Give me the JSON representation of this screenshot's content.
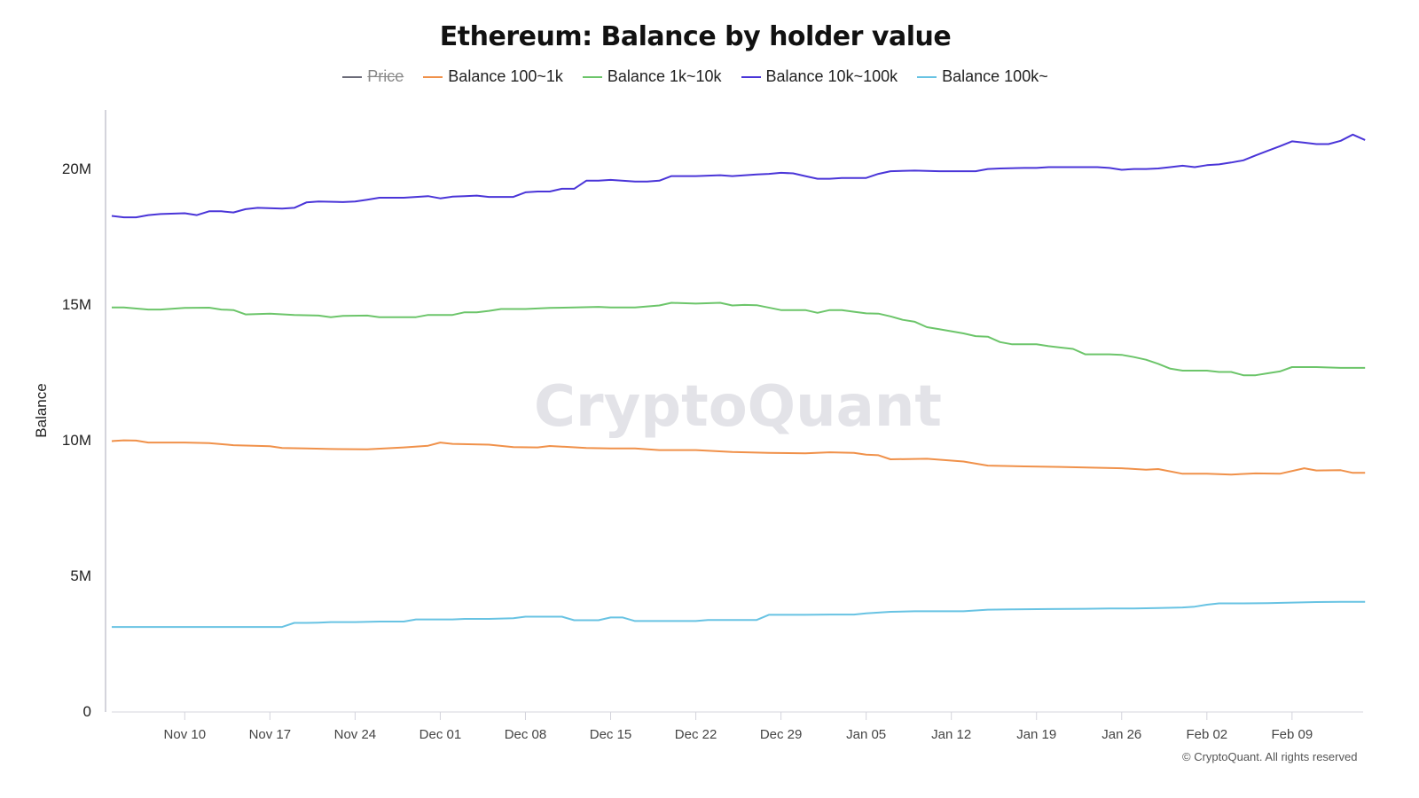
{
  "chart_data": {
    "type": "line",
    "title": "Ethereum: Balance by holder value",
    "xlabel": "",
    "ylabel": "Balance",
    "ylim": [
      0,
      22000000
    ],
    "yticks": [
      {
        "value": 0,
        "label": "0"
      },
      {
        "value": 5000000,
        "label": "5M"
      },
      {
        "value": 10000000,
        "label": "10M"
      },
      {
        "value": 15000000,
        "label": "15M"
      },
      {
        "value": 20000000,
        "label": "20M"
      }
    ],
    "x_start": "Nov 04",
    "x_unit": "day",
    "xticks": [
      {
        "day": 6,
        "label": "Nov 10"
      },
      {
        "day": 13,
        "label": "Nov 17"
      },
      {
        "day": 20,
        "label": "Nov 24"
      },
      {
        "day": 27,
        "label": "Dec 01"
      },
      {
        "day": 34,
        "label": "Dec 08"
      },
      {
        "day": 41,
        "label": "Dec 15"
      },
      {
        "day": 48,
        "label": "Dec 22"
      },
      {
        "day": 55,
        "label": "Dec 29"
      },
      {
        "day": 62,
        "label": "Jan 05"
      },
      {
        "day": 69,
        "label": "Jan 12"
      },
      {
        "day": 76,
        "label": "Jan 19"
      },
      {
        "day": 83,
        "label": "Jan 26"
      },
      {
        "day": 90,
        "label": "Feb 02"
      },
      {
        "day": 97,
        "label": "Feb 09"
      }
    ],
    "grid": false,
    "legend_position": "top-center",
    "series": [
      {
        "name": "Price",
        "color": "#6b6b78",
        "hidden": true,
        "values": []
      },
      {
        "name": "Balance 100~1k",
        "color": "#f0914a",
        "key_points": [
          [
            0,
            9.95
          ],
          [
            1,
            9.98
          ],
          [
            2,
            9.97
          ],
          [
            3,
            9.9
          ],
          [
            6,
            9.9
          ],
          [
            8,
            9.88
          ],
          [
            10,
            9.8
          ],
          [
            13,
            9.76
          ],
          [
            14,
            9.7
          ],
          [
            16,
            9.68
          ],
          [
            18,
            9.66
          ],
          [
            21,
            9.65
          ],
          [
            24,
            9.72
          ],
          [
            26,
            9.78
          ],
          [
            27,
            9.9
          ],
          [
            28,
            9.85
          ],
          [
            31,
            9.82
          ],
          [
            33,
            9.73
          ],
          [
            35,
            9.72
          ],
          [
            36,
            9.77
          ],
          [
            39,
            9.7
          ],
          [
            41,
            9.68
          ],
          [
            43,
            9.68
          ],
          [
            45,
            9.62
          ],
          [
            48,
            9.62
          ],
          [
            51,
            9.55
          ],
          [
            54,
            9.52
          ],
          [
            57,
            9.5
          ],
          [
            59,
            9.54
          ],
          [
            61,
            9.52
          ],
          [
            62,
            9.45
          ],
          [
            63,
            9.43
          ],
          [
            64,
            9.28
          ],
          [
            67,
            9.3
          ],
          [
            70,
            9.2
          ],
          [
            72,
            9.05
          ],
          [
            75,
            9.02
          ],
          [
            78,
            9.0
          ],
          [
            83,
            8.95
          ],
          [
            85,
            8.9
          ],
          [
            86,
            8.92
          ],
          [
            88,
            8.75
          ],
          [
            90,
            8.75
          ],
          [
            92,
            8.72
          ],
          [
            94,
            8.76
          ],
          [
            96,
            8.75
          ],
          [
            98,
            8.95
          ],
          [
            99,
            8.87
          ],
          [
            101,
            8.88
          ],
          [
            102,
            8.78
          ],
          [
            103,
            8.78
          ]
        ]
      },
      {
        "name": "Balance 1k~10k",
        "color": "#6cc56a",
        "key_points": [
          [
            0,
            14.88
          ],
          [
            1,
            14.88
          ],
          [
            3,
            14.8
          ],
          [
            4,
            14.8
          ],
          [
            6,
            14.86
          ],
          [
            8,
            14.87
          ],
          [
            9,
            14.8
          ],
          [
            10,
            14.78
          ],
          [
            11,
            14.62
          ],
          [
            13,
            14.65
          ],
          [
            15,
            14.6
          ],
          [
            17,
            14.58
          ],
          [
            18,
            14.52
          ],
          [
            19,
            14.57
          ],
          [
            21,
            14.58
          ],
          [
            22,
            14.52
          ],
          [
            24,
            14.52
          ],
          [
            25,
            14.52
          ],
          [
            26,
            14.6
          ],
          [
            28,
            14.6
          ],
          [
            29,
            14.7
          ],
          [
            30,
            14.7
          ],
          [
            31,
            14.75
          ],
          [
            32,
            14.82
          ],
          [
            34,
            14.82
          ],
          [
            36,
            14.86
          ],
          [
            38,
            14.88
          ],
          [
            40,
            14.9
          ],
          [
            41,
            14.88
          ],
          [
            43,
            14.88
          ],
          [
            45,
            14.95
          ],
          [
            46,
            15.05
          ],
          [
            48,
            15.02
          ],
          [
            50,
            15.05
          ],
          [
            51,
            14.95
          ],
          [
            52,
            14.97
          ],
          [
            53,
            14.96
          ],
          [
            55,
            14.78
          ],
          [
            57,
            14.78
          ],
          [
            58,
            14.68
          ],
          [
            59,
            14.78
          ],
          [
            60,
            14.78
          ],
          [
            61,
            14.72
          ],
          [
            62,
            14.66
          ],
          [
            63,
            14.65
          ],
          [
            64,
            14.55
          ],
          [
            65,
            14.42
          ],
          [
            66,
            14.35
          ],
          [
            67,
            14.15
          ],
          [
            68,
            14.08
          ],
          [
            69,
            14.0
          ],
          [
            70,
            13.92
          ],
          [
            71,
            13.82
          ],
          [
            72,
            13.8
          ],
          [
            73,
            13.6
          ],
          [
            74,
            13.52
          ],
          [
            76,
            13.52
          ],
          [
            77,
            13.45
          ],
          [
            78,
            13.4
          ],
          [
            79,
            13.35
          ],
          [
            80,
            13.15
          ],
          [
            82,
            13.15
          ],
          [
            83,
            13.13
          ],
          [
            84,
            13.05
          ],
          [
            85,
            12.95
          ],
          [
            86,
            12.8
          ],
          [
            87,
            12.62
          ],
          [
            88,
            12.55
          ],
          [
            90,
            12.55
          ],
          [
            91,
            12.5
          ],
          [
            92,
            12.5
          ],
          [
            93,
            12.38
          ],
          [
            94,
            12.38
          ],
          [
            95,
            12.45
          ],
          [
            96,
            12.52
          ],
          [
            97,
            12.68
          ],
          [
            99,
            12.68
          ],
          [
            101,
            12.65
          ],
          [
            103,
            12.65
          ]
        ]
      },
      {
        "name": "Balance 10k~100k",
        "color": "#4a35d8",
        "key_points": [
          [
            0,
            18.25
          ],
          [
            1,
            18.2
          ],
          [
            2,
            18.2
          ],
          [
            3,
            18.28
          ],
          [
            4,
            18.32
          ],
          [
            6,
            18.35
          ],
          [
            7,
            18.28
          ],
          [
            8,
            18.42
          ],
          [
            9,
            18.42
          ],
          [
            10,
            18.38
          ],
          [
            11,
            18.5
          ],
          [
            12,
            18.55
          ],
          [
            14,
            18.52
          ],
          [
            15,
            18.55
          ],
          [
            16,
            18.75
          ],
          [
            17,
            18.78
          ],
          [
            19,
            18.76
          ],
          [
            20,
            18.78
          ],
          [
            21,
            18.85
          ],
          [
            22,
            18.92
          ],
          [
            24,
            18.92
          ],
          [
            25,
            18.95
          ],
          [
            26,
            18.98
          ],
          [
            27,
            18.9
          ],
          [
            28,
            18.96
          ],
          [
            29,
            18.98
          ],
          [
            30,
            19.0
          ],
          [
            31,
            18.95
          ],
          [
            33,
            18.95
          ],
          [
            34,
            19.12
          ],
          [
            35,
            19.15
          ],
          [
            36,
            19.15
          ],
          [
            37,
            19.25
          ],
          [
            38,
            19.25
          ],
          [
            39,
            19.55
          ],
          [
            40,
            19.55
          ],
          [
            41,
            19.58
          ],
          [
            43,
            19.52
          ],
          [
            44,
            19.52
          ],
          [
            45,
            19.55
          ],
          [
            46,
            19.72
          ],
          [
            48,
            19.72
          ],
          [
            50,
            19.75
          ],
          [
            51,
            19.72
          ],
          [
            53,
            19.78
          ],
          [
            54,
            19.8
          ],
          [
            55,
            19.84
          ],
          [
            56,
            19.82
          ],
          [
            57,
            19.72
          ],
          [
            58,
            19.62
          ],
          [
            59,
            19.62
          ],
          [
            60,
            19.65
          ],
          [
            62,
            19.65
          ],
          [
            63,
            19.8
          ],
          [
            64,
            19.9
          ],
          [
            66,
            19.92
          ],
          [
            68,
            19.9
          ],
          [
            69,
            19.9
          ],
          [
            71,
            19.9
          ],
          [
            72,
            19.98
          ],
          [
            73,
            20.0
          ],
          [
            75,
            20.02
          ],
          [
            76,
            20.02
          ],
          [
            77,
            20.05
          ],
          [
            79,
            20.05
          ],
          [
            81,
            20.05
          ],
          [
            82,
            20.02
          ],
          [
            83,
            19.95
          ],
          [
            84,
            19.98
          ],
          [
            85,
            19.98
          ],
          [
            86,
            20.0
          ],
          [
            87,
            20.05
          ],
          [
            88,
            20.1
          ],
          [
            89,
            20.05
          ],
          [
            90,
            20.12
          ],
          [
            91,
            20.15
          ],
          [
            92,
            20.22
          ],
          [
            93,
            20.3
          ],
          [
            94,
            20.48
          ],
          [
            95,
            20.65
          ],
          [
            96,
            20.82
          ],
          [
            97,
            21.0
          ],
          [
            98,
            20.95
          ],
          [
            99,
            20.9
          ],
          [
            100,
            20.9
          ],
          [
            101,
            21.02
          ],
          [
            102,
            21.25
          ],
          [
            103,
            21.05
          ]
        ]
      },
      {
        "name": "Balance 100k~",
        "color": "#68c3e3",
        "key_points": [
          [
            0,
            3.1
          ],
          [
            13,
            3.1
          ],
          [
            14,
            3.1
          ],
          [
            15,
            3.25
          ],
          [
            16,
            3.25
          ],
          [
            17,
            3.26
          ],
          [
            18,
            3.28
          ],
          [
            20,
            3.28
          ],
          [
            22,
            3.3
          ],
          [
            24,
            3.3
          ],
          [
            25,
            3.38
          ],
          [
            26,
            3.38
          ],
          [
            28,
            3.38
          ],
          [
            29,
            3.4
          ],
          [
            31,
            3.4
          ],
          [
            33,
            3.42
          ],
          [
            34,
            3.48
          ],
          [
            35,
            3.48
          ],
          [
            37,
            3.48
          ],
          [
            38,
            3.35
          ],
          [
            40,
            3.35
          ],
          [
            41,
            3.45
          ],
          [
            42,
            3.45
          ],
          [
            43,
            3.32
          ],
          [
            45,
            3.32
          ],
          [
            48,
            3.32
          ],
          [
            49,
            3.36
          ],
          [
            51,
            3.36
          ],
          [
            53,
            3.36
          ],
          [
            54,
            3.55
          ],
          [
            56,
            3.55
          ],
          [
            57,
            3.55
          ],
          [
            59,
            3.56
          ],
          [
            61,
            3.56
          ],
          [
            62,
            3.6
          ],
          [
            64,
            3.66
          ],
          [
            66,
            3.68
          ],
          [
            68,
            3.68
          ],
          [
            70,
            3.68
          ],
          [
            72,
            3.74
          ],
          [
            74,
            3.75
          ],
          [
            77,
            3.76
          ],
          [
            80,
            3.77
          ],
          [
            82,
            3.78
          ],
          [
            84,
            3.78
          ],
          [
            86,
            3.8
          ],
          [
            88,
            3.82
          ],
          [
            89,
            3.85
          ],
          [
            90,
            3.92
          ],
          [
            91,
            3.97
          ],
          [
            93,
            3.97
          ],
          [
            95,
            3.98
          ],
          [
            97,
            4.0
          ],
          [
            99,
            4.02
          ],
          [
            101,
            4.03
          ],
          [
            103,
            4.03
          ]
        ]
      }
    ]
  },
  "legend": {
    "items": [
      {
        "label": "Price",
        "color": "#6b6b78",
        "disabled": true
      },
      {
        "label": "Balance 100~1k",
        "color": "#f0914a",
        "disabled": false
      },
      {
        "label": "Balance 1k~10k",
        "color": "#6cc56a",
        "disabled": false
      },
      {
        "label": "Balance 10k~100k",
        "color": "#4a35d8",
        "disabled": false
      },
      {
        "label": "Balance 100k~",
        "color": "#68c3e3",
        "disabled": false
      }
    ]
  },
  "watermark": "CryptoQuant",
  "copyright": "© CryptoQuant. All rights reserved"
}
